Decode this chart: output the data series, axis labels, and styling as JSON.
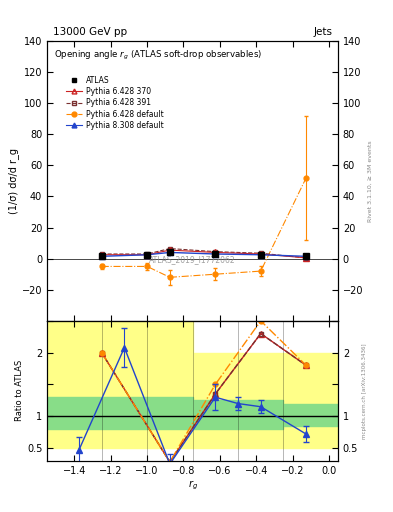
{
  "title_top": "13000 GeV pp",
  "title_right": "Jets",
  "plot_title": "Opening angle $r_g$ (ATLAS soft-drop observables)",
  "ylabel_main": "(1/σ) dσ/d r_g",
  "ylabel_ratio": "Ratio to ATLAS",
  "xlabel": "$r_g$",
  "rivet_label": "Rivet 3.1.10, ≥ 3M events",
  "arxiv_label": "mcplots.cern.ch [arXiv:1306.3436]",
  "atlas_label": "ATLAS_2019_I1772062",
  "x_values": [
    -1.25,
    -1.0,
    -0.875,
    -0.625,
    -0.375,
    -0.125
  ],
  "atlas_y": [
    2.0,
    2.5,
    4.0,
    3.0,
    2.5,
    1.5
  ],
  "atlas_yerr": [
    0.5,
    0.5,
    0.8,
    0.5,
    0.5,
    0.5
  ],
  "p6_370_y": [
    2.5,
    2.5,
    5.5,
    4.0,
    3.0,
    0.5
  ],
  "p6_370_yerr": [
    0.3,
    0.3,
    0.6,
    0.4,
    0.3,
    0.3
  ],
  "p6_391_y": [
    3.0,
    3.0,
    6.5,
    4.5,
    3.5,
    0.5
  ],
  "p6_391_yerr": [
    0.3,
    0.3,
    0.6,
    0.4,
    0.3,
    0.3
  ],
  "p6_def_y": [
    -5.0,
    -5.0,
    -12.0,
    -10.0,
    -8.0,
    52.0
  ],
  "p6_def_yerr": [
    1.5,
    2.0,
    5.0,
    4.0,
    3.0,
    40.0
  ],
  "p8_def_y": [
    1.5,
    2.5,
    4.0,
    3.0,
    2.5,
    1.5
  ],
  "p8_def_yerr": [
    0.3,
    0.3,
    0.5,
    0.3,
    0.3,
    0.3
  ],
  "ratio_x": [
    -1.25,
    -0.875,
    -0.625,
    -0.375,
    -0.125
  ],
  "ratio_p6370": [
    2.0,
    0.28,
    1.35,
    2.3,
    1.8
  ],
  "ratio_p6391": [
    2.0,
    0.28,
    1.35,
    2.3,
    1.8
  ],
  "ratio_p6def": [
    2.0,
    0.28,
    1.5,
    2.5,
    1.8
  ],
  "ratio_p8def": [
    0.47,
    2.08,
    0.25,
    1.3,
    1.2,
    1.15,
    0.72
  ],
  "ratio_x_p8": [
    -1.375,
    -1.125,
    -0.875,
    -0.625,
    -0.5,
    -0.375,
    -0.125
  ],
  "ratio_p8def_v": [
    0.47,
    2.08,
    0.25,
    1.3,
    1.2,
    1.15,
    0.72
  ],
  "ratio_p8def_err": [
    0.2,
    0.3,
    0.15,
    0.2,
    0.1,
    0.1,
    0.12
  ],
  "ylim_main": [
    -40,
    140
  ],
  "ylim_ratio": [
    0.3,
    2.5
  ],
  "xlim": [
    -1.55,
    0.05
  ],
  "color_atlas": "#000000",
  "color_p6_370": "#cc2222",
  "color_p6_391": "#7a3030",
  "color_p6_def": "#ff8800",
  "color_p8_def": "#2244cc",
  "bg_color": "#ffffff",
  "band_xedges": [
    -1.55,
    -1.25,
    -1.0,
    -0.75,
    -0.5,
    -0.25,
    0.05
  ],
  "band_yellow_lo": [
    0.5,
    0.5,
    0.5,
    0.5,
    0.5,
    0.5
  ],
  "band_yellow_hi": [
    2.5,
    2.5,
    2.5,
    2.0,
    2.0,
    2.0
  ],
  "band_green_lo": [
    0.8,
    0.8,
    0.8,
    0.8,
    0.8,
    0.85
  ],
  "band_green_hi": [
    1.3,
    1.3,
    1.3,
    1.25,
    1.25,
    1.2
  ]
}
